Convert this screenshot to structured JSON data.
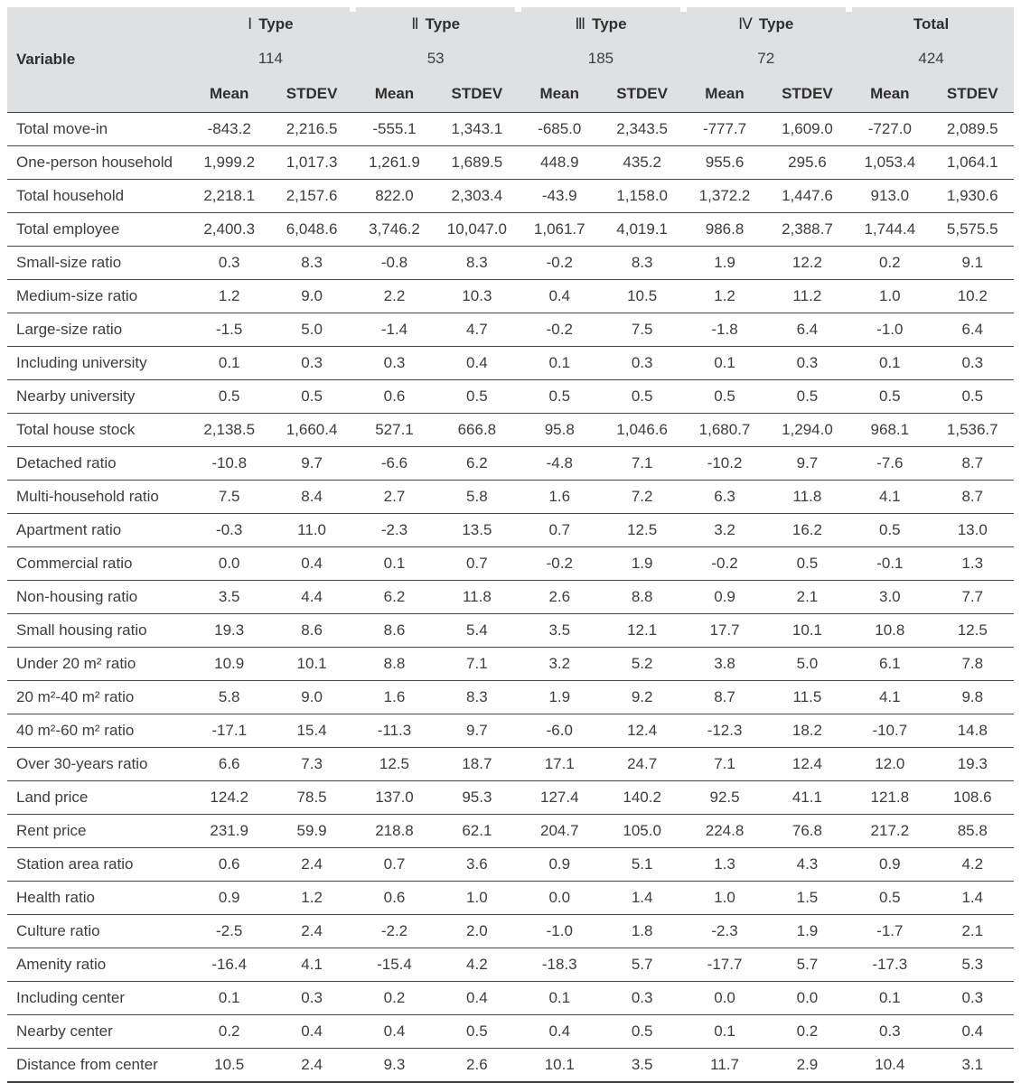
{
  "table": {
    "variable_header": "Variable",
    "sub_headers": [
      "Mean",
      "STDEV"
    ],
    "groups": [
      {
        "numeral": "Ⅰ",
        "label": "Type",
        "count": "114"
      },
      {
        "numeral": "Ⅱ",
        "label": "Type",
        "count": "53"
      },
      {
        "numeral": "Ⅲ",
        "label": "Type",
        "count": "185"
      },
      {
        "numeral": "Ⅳ",
        "label": "Type",
        "count": "72"
      },
      {
        "numeral": "",
        "label": "Total",
        "count": "424"
      }
    ],
    "rows": [
      {
        "label": "Total move-in",
        "values": [
          "-843.2",
          "2,216.5",
          "-555.1",
          "1,343.1",
          "-685.0",
          "2,343.5",
          "-777.7",
          "1,609.0",
          "-727.0",
          "2,089.5"
        ]
      },
      {
        "label": "One-person household",
        "values": [
          "1,999.2",
          "1,017.3",
          "1,261.9",
          "1,689.5",
          "448.9",
          "435.2",
          "955.6",
          "295.6",
          "1,053.4",
          "1,064.1"
        ]
      },
      {
        "label": "Total household",
        "values": [
          "2,218.1",
          "2,157.6",
          "822.0",
          "2,303.4",
          "-43.9",
          "1,158.0",
          "1,372.2",
          "1,447.6",
          "913.0",
          "1,930.6"
        ]
      },
      {
        "label": "Total employee",
        "values": [
          "2,400.3",
          "6,048.6",
          "3,746.2",
          "10,047.0",
          "1,061.7",
          "4,019.1",
          "986.8",
          "2,388.7",
          "1,744.4",
          "5,575.5"
        ]
      },
      {
        "label": "Small-size ratio",
        "values": [
          "0.3",
          "8.3",
          "-0.8",
          "8.3",
          "-0.2",
          "8.3",
          "1.9",
          "12.2",
          "0.2",
          "9.1"
        ]
      },
      {
        "label": "Medium-size ratio",
        "values": [
          "1.2",
          "9.0",
          "2.2",
          "10.3",
          "0.4",
          "10.5",
          "1.2",
          "11.2",
          "1.0",
          "10.2"
        ]
      },
      {
        "label": "Large-size ratio",
        "values": [
          "-1.5",
          "5.0",
          "-1.4",
          "4.7",
          "-0.2",
          "7.5",
          "-1.8",
          "6.4",
          "-1.0",
          "6.4"
        ]
      },
      {
        "label": "Including university",
        "values": [
          "0.1",
          "0.3",
          "0.3",
          "0.4",
          "0.1",
          "0.3",
          "0.1",
          "0.3",
          "0.1",
          "0.3"
        ]
      },
      {
        "label": "Nearby university",
        "values": [
          "0.5",
          "0.5",
          "0.6",
          "0.5",
          "0.5",
          "0.5",
          "0.5",
          "0.5",
          "0.5",
          "0.5"
        ]
      },
      {
        "label": "Total house stock",
        "values": [
          "2,138.5",
          "1,660.4",
          "527.1",
          "666.8",
          "95.8",
          "1,046.6",
          "1,680.7",
          "1,294.0",
          "968.1",
          "1,536.7"
        ]
      },
      {
        "label": "Detached ratio",
        "values": [
          "-10.8",
          "9.7",
          "-6.6",
          "6.2",
          "-4.8",
          "7.1",
          "-10.2",
          "9.7",
          "-7.6",
          "8.7"
        ]
      },
      {
        "label": "Multi-household ratio",
        "values": [
          "7.5",
          "8.4",
          "2.7",
          "5.8",
          "1.6",
          "7.2",
          "6.3",
          "11.8",
          "4.1",
          "8.7"
        ]
      },
      {
        "label": "Apartment ratio",
        "values": [
          "-0.3",
          "11.0",
          "-2.3",
          "13.5",
          "0.7",
          "12.5",
          "3.2",
          "16.2",
          "0.5",
          "13.0"
        ]
      },
      {
        "label": "Commercial ratio",
        "values": [
          "0.0",
          "0.4",
          "0.1",
          "0.7",
          "-0.2",
          "1.9",
          "-0.2",
          "0.5",
          "-0.1",
          "1.3"
        ]
      },
      {
        "label": "Non-housing ratio",
        "values": [
          "3.5",
          "4.4",
          "6.2",
          "11.8",
          "2.6",
          "8.8",
          "0.9",
          "2.1",
          "3.0",
          "7.7"
        ]
      },
      {
        "label": "Small housing ratio",
        "values": [
          "19.3",
          "8.6",
          "8.6",
          "5.4",
          "3.5",
          "12.1",
          "17.7",
          "10.1",
          "10.8",
          "12.5"
        ]
      },
      {
        "label": "Under 20 m² ratio",
        "values": [
          "10.9",
          "10.1",
          "8.8",
          "7.1",
          "3.2",
          "5.2",
          "3.8",
          "5.0",
          "6.1",
          "7.8"
        ]
      },
      {
        "label": "20 m²-40 m² ratio",
        "values": [
          "5.8",
          "9.0",
          "1.6",
          "8.3",
          "1.9",
          "9.2",
          "8.7",
          "11.5",
          "4.1",
          "9.8"
        ]
      },
      {
        "label": "40 m²-60 m² ratio",
        "values": [
          "-17.1",
          "15.4",
          "-11.3",
          "9.7",
          "-6.0",
          "12.4",
          "-12.3",
          "18.2",
          "-10.7",
          "14.8"
        ]
      },
      {
        "label": "Over 30-years ratio",
        "values": [
          "6.6",
          "7.3",
          "12.5",
          "18.7",
          "17.1",
          "24.7",
          "7.1",
          "12.4",
          "12.0",
          "19.3"
        ]
      },
      {
        "label": "Land price",
        "values": [
          "124.2",
          "78.5",
          "137.0",
          "95.3",
          "127.4",
          "140.2",
          "92.5",
          "41.1",
          "121.8",
          "108.6"
        ]
      },
      {
        "label": "Rent price",
        "values": [
          "231.9",
          "59.9",
          "218.8",
          "62.1",
          "204.7",
          "105.0",
          "224.8",
          "76.8",
          "217.2",
          "85.8"
        ]
      },
      {
        "label": "Station area ratio",
        "values": [
          "0.6",
          "2.4",
          "0.7",
          "3.6",
          "0.9",
          "5.1",
          "1.3",
          "4.3",
          "0.9",
          "4.2"
        ]
      },
      {
        "label": "Health ratio",
        "values": [
          "0.9",
          "1.2",
          "0.6",
          "1.0",
          "0.0",
          "1.4",
          "1.0",
          "1.5",
          "0.5",
          "1.4"
        ]
      },
      {
        "label": "Culture ratio",
        "values": [
          "-2.5",
          "2.4",
          "-2.2",
          "2.0",
          "-1.0",
          "1.8",
          "-2.3",
          "1.9",
          "-1.7",
          "2.1"
        ]
      },
      {
        "label": "Amenity ratio",
        "values": [
          "-16.4",
          "4.1",
          "-15.4",
          "4.2",
          "-18.3",
          "5.7",
          "-17.7",
          "5.7",
          "-17.3",
          "5.3"
        ]
      },
      {
        "label": "Including center",
        "values": [
          "0.1",
          "0.3",
          "0.2",
          "0.4",
          "0.1",
          "0.3",
          "0.0",
          "0.0",
          "0.1",
          "0.3"
        ]
      },
      {
        "label": "Nearby center",
        "values": [
          "0.2",
          "0.4",
          "0.4",
          "0.5",
          "0.4",
          "0.5",
          "0.1",
          "0.2",
          "0.3",
          "0.4"
        ]
      },
      {
        "label": "Distance from center",
        "values": [
          "10.5",
          "2.4",
          "9.3",
          "2.6",
          "10.1",
          "3.5",
          "11.7",
          "2.9",
          "10.4",
          "3.1"
        ]
      }
    ]
  },
  "colors": {
    "header_bg": "#dfe0e2",
    "rule": "#3f3f3f",
    "text": "#3d3d3d"
  }
}
